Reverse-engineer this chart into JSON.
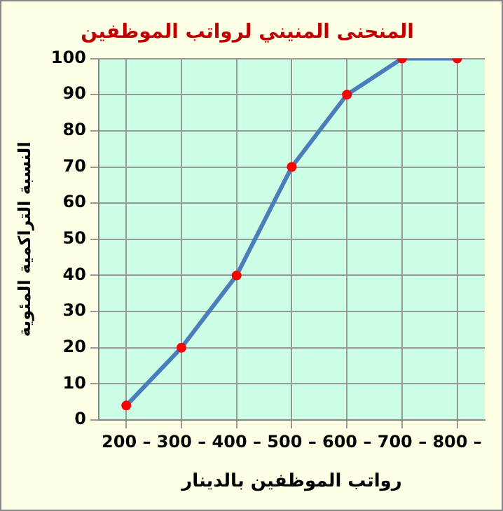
{
  "chart_data": {
    "type": "line",
    "title": "المنحنى المنيني لرواتب الموظفين",
    "xlabel": "رواتب الموظفين بالدينار",
    "ylabel": "النسبة التراكمية المئوية",
    "categories": [
      "200 –",
      "300 –",
      "400 –",
      "500 –",
      "600 –",
      "700 –",
      "800 –"
    ],
    "series": [
      {
        "color": "#4a7ebb",
        "values": [
          4,
          20,
          40,
          70,
          90,
          100,
          100
        ]
      }
    ],
    "ylim": [
      0,
      100
    ],
    "yticks": [
      0,
      10,
      20,
      30,
      40,
      50,
      60,
      70,
      80,
      90,
      100
    ],
    "grid": true,
    "marker": "circle",
    "line_style": "solid"
  }
}
